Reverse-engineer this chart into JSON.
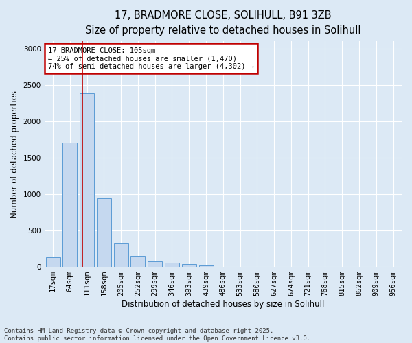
{
  "title_line1": "17, BRADMORE CLOSE, SOLIHULL, B91 3ZB",
  "title_line2": "Size of property relative to detached houses in Solihull",
  "xlabel": "Distribution of detached houses by size in Solihull",
  "ylabel": "Number of detached properties",
  "categories": [
    "17sqm",
    "64sqm",
    "111sqm",
    "158sqm",
    "205sqm",
    "252sqm",
    "299sqm",
    "346sqm",
    "393sqm",
    "439sqm",
    "486sqm",
    "533sqm",
    "580sqm",
    "627sqm",
    "674sqm",
    "721sqm",
    "768sqm",
    "815sqm",
    "862sqm",
    "909sqm",
    "956sqm"
  ],
  "values": [
    130,
    1710,
    2390,
    940,
    330,
    150,
    80,
    55,
    40,
    15,
    5,
    0,
    0,
    0,
    0,
    0,
    0,
    0,
    0,
    0,
    0
  ],
  "bar_color": "#c5d8ef",
  "bar_edge_color": "#5b9bd5",
  "vline_x": 1.72,
  "vline_color": "#c00000",
  "annotation_text": "17 BRADMORE CLOSE: 105sqm\n← 25% of detached houses are smaller (1,470)\n74% of semi-detached houses are larger (4,302) →",
  "annotation_box_color": "#ffffff",
  "annotation_box_edge": "#c00000",
  "ylim": [
    0,
    3100
  ],
  "yticks": [
    0,
    500,
    1000,
    1500,
    2000,
    2500,
    3000
  ],
  "background_color": "#dce9f5",
  "plot_bg_color": "#dce9f5",
  "grid_color": "#ffffff",
  "footer": "Contains HM Land Registry data © Crown copyright and database right 2025.\nContains public sector information licensed under the Open Government Licence v3.0.",
  "title_fontsize": 10.5,
  "subtitle_fontsize": 9.5,
  "axis_label_fontsize": 8.5,
  "tick_fontsize": 7.5,
  "footer_fontsize": 6.5,
  "ann_fontsize": 7.5
}
